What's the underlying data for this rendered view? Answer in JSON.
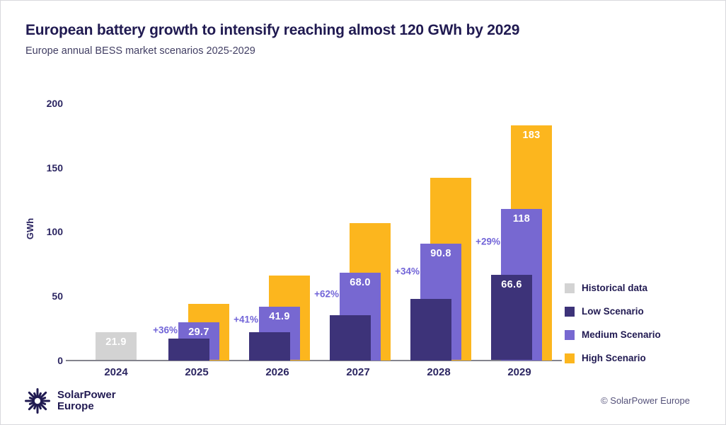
{
  "header": {
    "title": "European battery growth to intensify reaching almost 120 GWh by 2029",
    "subtitle": "Europe annual BESS market scenarios 2025-2029"
  },
  "chart_data": {
    "type": "bar",
    "title": "European battery growth to intensify reaching almost 120 GWh by 2029",
    "subtitle": "Europe annual BESS market scenarios 2025-2029",
    "ylabel": "GWh",
    "ylim": [
      0,
      200
    ],
    "yticks": [
      0,
      50,
      100,
      150,
      200
    ],
    "grid": false,
    "legend_position": "right",
    "categories": [
      "2024",
      "2025",
      "2026",
      "2027",
      "2028",
      "2029"
    ],
    "series": [
      {
        "name": "Historical data",
        "color": "#d3d3d3",
        "values": [
          21.9,
          null,
          null,
          null,
          null,
          null
        ],
        "bar_labels": [
          "21.9",
          null,
          null,
          null,
          null,
          null
        ]
      },
      {
        "name": "Low Scenario",
        "color": "#3d3379",
        "values": [
          null,
          17,
          22,
          35,
          48,
          66.6
        ],
        "bar_labels": [
          null,
          null,
          null,
          null,
          null,
          "66.6"
        ]
      },
      {
        "name": "Medium Scenario",
        "color": "#7768d1",
        "values": [
          null,
          29.7,
          41.9,
          68.0,
          90.8,
          118
        ],
        "bar_labels": [
          null,
          "29.7",
          "41.9",
          "68.0",
          "90.8",
          "118"
        ]
      },
      {
        "name": "High Scenario",
        "color": "#fcb61e",
        "values": [
          null,
          44,
          66,
          107,
          142,
          183
        ],
        "bar_labels": [
          null,
          null,
          null,
          null,
          null,
          "183"
        ]
      }
    ],
    "growth_labels": [
      {
        "category": "2025",
        "text": "+36%"
      },
      {
        "category": "2026",
        "text": "+41%"
      },
      {
        "category": "2027",
        "text": "+62%"
      },
      {
        "category": "2028",
        "text": "+34%"
      },
      {
        "category": "2029",
        "text": "+29%"
      }
    ]
  },
  "legend": {
    "items": [
      {
        "label": "Historical data",
        "color": "#d3d3d3"
      },
      {
        "label": "Low Scenario",
        "color": "#3d3379"
      },
      {
        "label": "Medium Scenario",
        "color": "#7768d1"
      },
      {
        "label": "High Scenario",
        "color": "#fcb61e"
      }
    ]
  },
  "footer": {
    "logo_line1": "SolarPower",
    "logo_line2": "Europe",
    "copyright": "© SolarPower Europe"
  },
  "colors": {
    "title_navy": "#201a51",
    "tick_navy": "#2c2662",
    "growth_purple": "#7265d8",
    "axis_gray": "#84848d",
    "historical_gray": "#d3d3d3",
    "low_purple": "#3d3379",
    "medium_purple": "#7768d1",
    "high_yellow": "#fcb61e"
  }
}
